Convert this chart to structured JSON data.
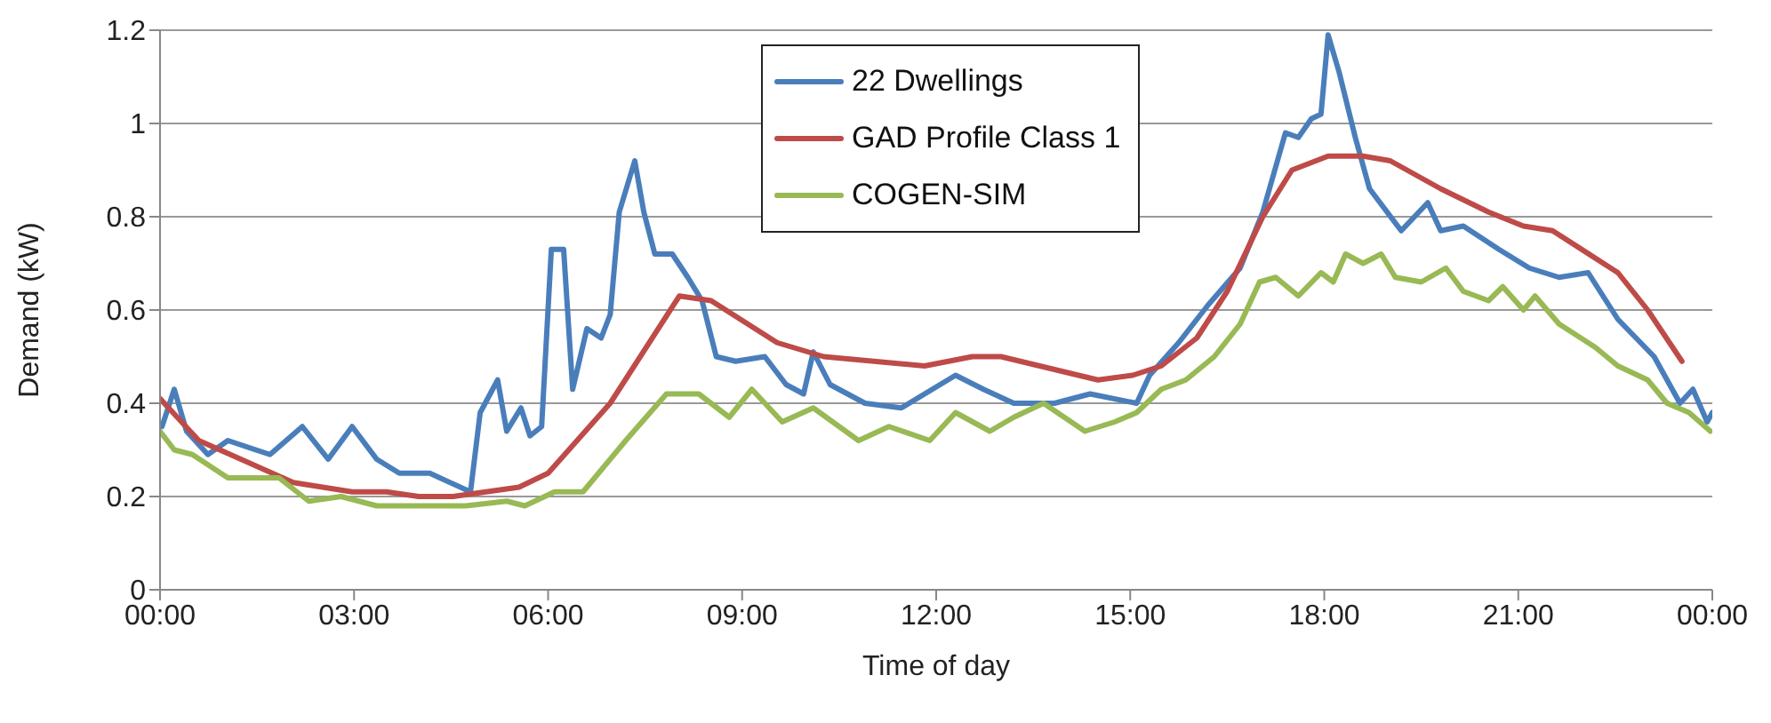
{
  "chart_data": {
    "type": "line",
    "xlabel": "Time of day",
    "ylabel": "Demand (kW)",
    "xlim": [
      0,
      24
    ],
    "xticks": [
      {
        "value": 0,
        "label": "00:00"
      },
      {
        "value": 3,
        "label": "03:00"
      },
      {
        "value": 6,
        "label": "06:00"
      },
      {
        "value": 9,
        "label": "09:00"
      },
      {
        "value": 12,
        "label": "12:00"
      },
      {
        "value": 15,
        "label": "15:00"
      },
      {
        "value": 18,
        "label": "18:00"
      },
      {
        "value": 21,
        "label": "21:00"
      },
      {
        "value": 24,
        "label": "00:00"
      }
    ],
    "ylim": [
      0,
      1.2
    ],
    "yticks": [
      0,
      0.2,
      0.4,
      0.6,
      0.8,
      1,
      1.2
    ],
    "grid": "y",
    "legend": "top",
    "marker": "none",
    "line_style": "solid",
    "series": [
      {
        "name": "22 Dwellings",
        "color": "#4a7ebb",
        "x": [
          0.03,
          0.22,
          0.41,
          0.74,
          1.05,
          1.7,
          2.2,
          2.6,
          2.97,
          3.35,
          3.7,
          4.17,
          4.8,
          4.95,
          5.22,
          5.36,
          5.58,
          5.72,
          5.9,
          6.05,
          6.24,
          6.38,
          6.6,
          6.82,
          6.96,
          7.1,
          7.34,
          7.48,
          7.65,
          7.92,
          8.16,
          8.38,
          8.6,
          8.9,
          9.35,
          9.68,
          9.95,
          10.1,
          10.36,
          10.9,
          11.46,
          12.3,
          12.73,
          13.2,
          13.83,
          14.38,
          15.1,
          15.3,
          15.75,
          16.2,
          16.7,
          17.05,
          17.4,
          17.6,
          17.8,
          17.95,
          18.06,
          18.23,
          18.48,
          18.7,
          19.19,
          19.6,
          19.8,
          20.15,
          20.7,
          21.17,
          21.63,
          22.08,
          22.54,
          23.1,
          23.5,
          23.7,
          23.92,
          24
        ],
        "values": [
          0.35,
          0.43,
          0.34,
          0.29,
          0.32,
          0.29,
          0.35,
          0.28,
          0.35,
          0.28,
          0.25,
          0.25,
          0.21,
          0.38,
          0.45,
          0.34,
          0.39,
          0.33,
          0.35,
          0.73,
          0.73,
          0.43,
          0.56,
          0.54,
          0.59,
          0.81,
          0.92,
          0.81,
          0.72,
          0.72,
          0.67,
          0.62,
          0.5,
          0.49,
          0.5,
          0.44,
          0.42,
          0.51,
          0.44,
          0.4,
          0.39,
          0.46,
          0.43,
          0.4,
          0.4,
          0.42,
          0.4,
          0.46,
          0.53,
          0.61,
          0.69,
          0.81,
          0.98,
          0.97,
          1.01,
          1.02,
          1.19,
          1.11,
          0.97,
          0.86,
          0.77,
          0.83,
          0.77,
          0.78,
          0.73,
          0.69,
          0.67,
          0.68,
          0.58,
          0.5,
          0.4,
          0.43,
          0.36,
          0.38
        ]
      },
      {
        "name": "GAD Profile Class 1",
        "color": "#be4b48",
        "x": [
          0,
          0.6,
          2.06,
          2.97,
          3.5,
          4.0,
          4.53,
          5.55,
          6.0,
          6.96,
          8.03,
          8.52,
          9.54,
          10.26,
          11.82,
          12.56,
          13.0,
          14.5,
          15.04,
          15.48,
          16.03,
          16.5,
          17.05,
          17.5,
          18.06,
          18.6,
          19.02,
          19.8,
          20.54,
          21.08,
          21.53,
          22.54,
          23.0,
          23.53
        ],
        "values": [
          0.41,
          0.32,
          0.23,
          0.21,
          0.21,
          0.2,
          0.2,
          0.22,
          0.25,
          0.4,
          0.63,
          0.62,
          0.53,
          0.5,
          0.48,
          0.5,
          0.5,
          0.45,
          0.46,
          0.48,
          0.54,
          0.64,
          0.8,
          0.9,
          0.93,
          0.93,
          0.92,
          0.86,
          0.81,
          0.78,
          0.77,
          0.68,
          0.6,
          0.49
        ]
      },
      {
        "name": "COGEN-SIM",
        "color": "#98b954",
        "x": [
          0,
          0.22,
          0.5,
          1.05,
          1.5,
          1.84,
          2.3,
          2.8,
          3.35,
          4.0,
          4.73,
          5.36,
          5.64,
          6.1,
          6.54,
          7.2,
          7.83,
          8.33,
          8.8,
          9.15,
          9.62,
          10.1,
          10.8,
          11.27,
          11.9,
          12.3,
          12.83,
          13.2,
          13.66,
          14.3,
          14.76,
          15.1,
          15.48,
          15.86,
          16.3,
          16.7,
          17.0,
          17.25,
          17.6,
          17.95,
          18.14,
          18.33,
          18.6,
          18.88,
          19.1,
          19.5,
          19.88,
          20.15,
          20.54,
          20.76,
          21.08,
          21.26,
          21.63,
          22.19,
          22.54,
          23.0,
          23.3,
          23.64,
          23.97
        ],
        "values": [
          0.34,
          0.3,
          0.29,
          0.24,
          0.24,
          0.24,
          0.19,
          0.2,
          0.18,
          0.18,
          0.18,
          0.19,
          0.18,
          0.21,
          0.21,
          0.32,
          0.42,
          0.42,
          0.37,
          0.43,
          0.36,
          0.39,
          0.32,
          0.35,
          0.32,
          0.38,
          0.34,
          0.37,
          0.4,
          0.34,
          0.36,
          0.38,
          0.43,
          0.45,
          0.5,
          0.57,
          0.66,
          0.67,
          0.63,
          0.68,
          0.66,
          0.72,
          0.7,
          0.72,
          0.67,
          0.66,
          0.69,
          0.64,
          0.62,
          0.65,
          0.6,
          0.63,
          0.57,
          0.52,
          0.48,
          0.45,
          0.4,
          0.38,
          0.34
        ]
      }
    ]
  }
}
